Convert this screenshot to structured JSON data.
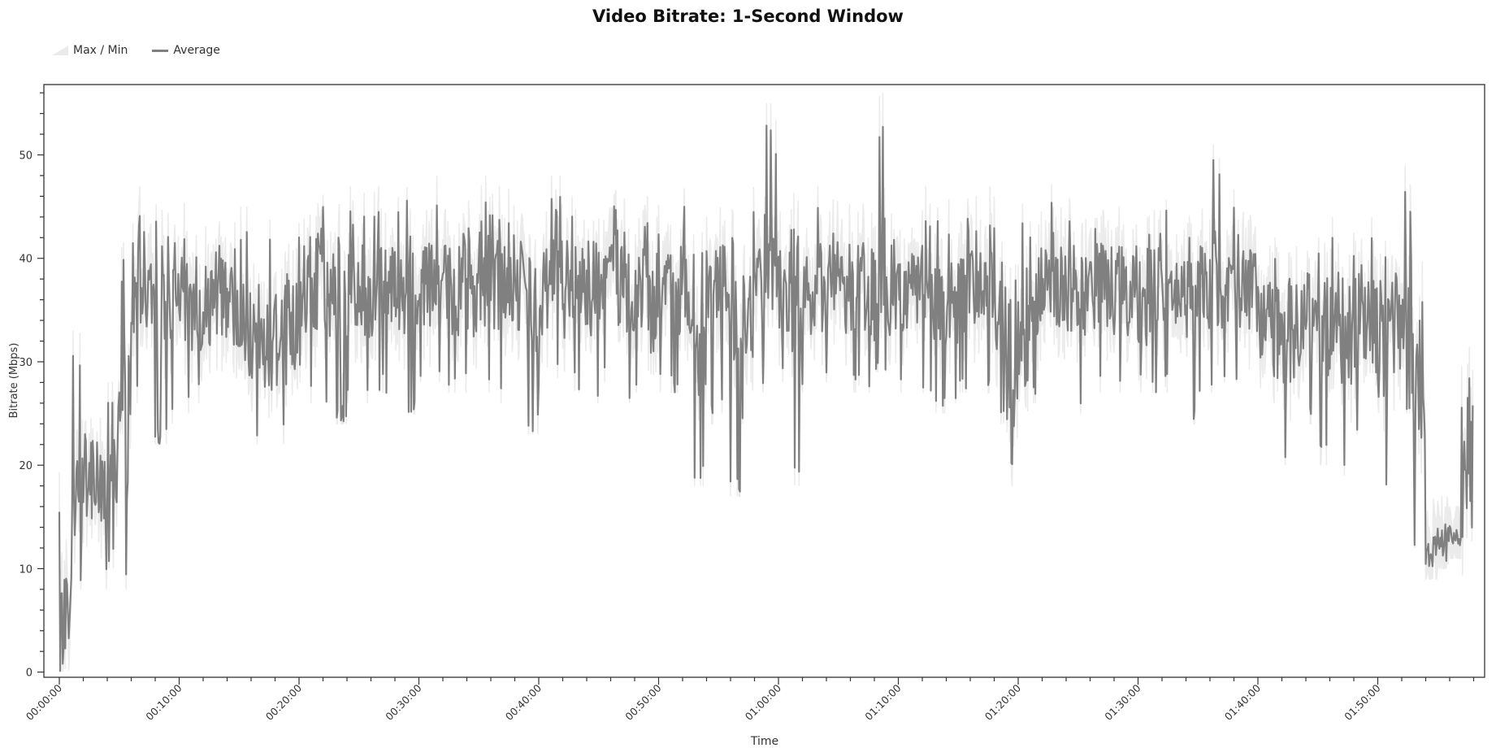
{
  "chart_data": {
    "type": "line",
    "title": "Video Bitrate: 1-Second Window",
    "xlabel": "Time",
    "ylabel": "Bitrate (Mbps)",
    "legend": [
      {
        "name": "Max / Min",
        "kind": "band",
        "color": "#ebebeb"
      },
      {
        "name": "Average",
        "kind": "line",
        "color": "#808080"
      }
    ],
    "legend_placement": "top-left",
    "grid": false,
    "ylim": [
      -0.5,
      56.8
    ],
    "yticks": [
      0,
      10,
      20,
      30,
      40,
      50
    ],
    "xlim_minutes": [
      0,
      118
    ],
    "xticks": [
      "00:00:00",
      "00:10:00",
      "00:20:00",
      "00:30:00",
      "00:40:00",
      "00:50:00",
      "01:00:00",
      "01:10:00",
      "01:20:00",
      "01:30:00",
      "01:40:00",
      "01:50:00"
    ],
    "x_unit": "minute",
    "minute_avg": [
      5,
      18,
      20,
      18,
      22,
      24,
      37,
      38,
      36,
      35,
      36,
      36,
      36,
      37,
      36,
      33,
      33,
      32,
      32,
      34,
      38,
      38,
      37,
      37,
      37,
      37,
      37,
      37,
      37,
      37,
      38,
      38,
      37,
      38,
      37,
      38,
      37,
      38,
      37,
      36,
      37,
      38,
      37,
      37,
      37,
      38,
      38,
      37,
      37,
      36,
      37,
      37,
      37,
      30,
      36,
      37,
      36,
      35,
      37,
      37,
      38,
      37,
      37,
      37,
      38,
      37,
      37,
      37,
      38,
      37,
      37,
      38,
      37,
      36,
      36,
      37,
      37,
      37,
      35,
      25,
      33,
      37,
      38,
      37,
      37,
      36,
      37,
      37,
      37,
      37,
      37,
      37,
      37,
      36,
      35,
      37,
      37,
      38,
      38,
      37,
      34,
      33,
      33,
      33,
      35,
      33,
      34,
      33,
      34,
      34,
      32,
      33,
      36,
      28,
      12,
      13,
      13,
      20
    ],
    "minute_min": [
      0,
      8,
      9,
      8,
      10,
      8,
      26,
      27,
      22,
      24,
      25,
      26,
      25,
      26,
      24,
      23,
      22,
      23,
      22,
      24,
      28,
      26,
      26,
      24,
      26,
      26,
      27,
      27,
      26,
      25,
      28,
      28,
      27,
      27,
      22,
      27,
      26,
      27,
      26,
      23,
      27,
      28,
      26,
      27,
      26,
      28,
      27,
      26,
      27,
      23,
      27,
      27,
      27,
      18,
      24,
      25,
      17,
      24,
      27,
      27,
      28,
      18,
      27,
      27,
      28,
      27,
      27,
      27,
      29,
      26,
      27,
      28,
      27,
      25,
      26,
      27,
      27,
      27,
      24,
      15,
      17,
      26,
      28,
      27,
      27,
      25,
      27,
      27,
      27,
      27,
      27,
      27,
      27,
      25,
      24,
      27,
      27,
      28,
      28,
      27,
      22,
      21,
      20,
      21,
      24,
      20,
      22,
      19,
      23,
      21,
      18,
      19,
      25,
      12,
      9,
      10,
      11,
      2
    ],
    "minute_max": [
      20,
      33,
      32,
      30,
      36,
      42,
      47,
      49,
      47,
      45,
      46,
      48,
      45,
      47,
      46,
      45,
      43,
      44,
      42,
      46,
      52,
      50,
      48,
      47,
      47,
      47,
      47,
      46,
      47,
      48,
      49,
      48,
      47,
      53,
      47,
      48,
      47,
      48,
      47,
      46,
      47,
      48,
      47,
      47,
      47,
      48,
      49,
      47,
      47,
      46,
      47,
      47,
      47,
      44,
      46,
      47,
      46,
      47,
      47,
      55,
      51,
      47,
      47,
      47,
      48,
      47,
      47,
      47,
      56,
      48,
      47,
      47,
      47,
      46,
      46,
      47,
      47,
      48,
      46,
      40,
      46,
      47,
      48,
      48,
      47,
      46,
      47,
      47,
      47,
      47,
      54,
      47,
      47,
      46,
      46,
      47,
      52,
      54,
      49,
      47,
      43,
      42,
      43,
      42,
      43,
      43,
      44,
      42,
      44,
      44,
      44,
      45,
      49,
      40,
      17,
      17,
      16,
      33
    ]
  }
}
